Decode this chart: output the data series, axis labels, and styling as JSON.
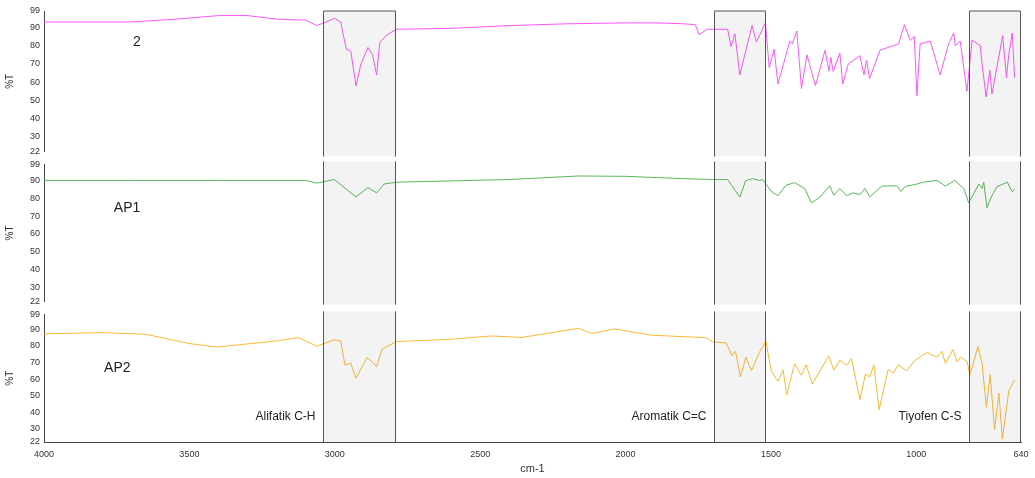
{
  "chart_data": [
    {
      "type": "line",
      "ylabel": "%T",
      "xlim": [
        4000,
        640
      ],
      "xticks": [
        4000,
        3500,
        3000,
        2500,
        2000,
        1500,
        1000,
        640
      ],
      "ylim": [
        22,
        99
      ],
      "yticks": [
        22,
        30,
        40,
        50,
        60,
        70,
        80,
        90,
        99
      ],
      "tick_labels": "y",
      "grid": false,
      "legend": false,
      "marker": "none",
      "bands": [
        {
          "axis": "x",
          "from": 3041,
          "to": 2788
        },
        {
          "axis": "x",
          "from": 1695,
          "to": 1516
        },
        {
          "axis": "x",
          "from": 818,
          "to": 640
        }
      ],
      "x": [
        4000,
        3700,
        3550,
        3400,
        3300,
        3200,
        3100,
        3062,
        3030,
        3001,
        2980,
        2960,
        2945,
        2927,
        2910,
        2886,
        2870,
        2856,
        2845,
        2820,
        2788,
        2600,
        2400,
        2200,
        2000,
        1900,
        1800,
        1760,
        1747,
        1720,
        1700,
        1649,
        1637,
        1624,
        1607,
        1565,
        1550,
        1519,
        1506,
        1489,
        1476,
        1435,
        1427,
        1411,
        1395,
        1376,
        1347,
        1314,
        1300,
        1294,
        1286,
        1263,
        1253,
        1234,
        1194,
        1180,
        1171,
        1161,
        1125,
        1061,
        1041,
        1021,
        1007,
        998,
        987,
        952,
        918,
        889,
        871,
        866,
        849,
        826,
        808,
        780,
        774,
        760,
        747,
        740,
        703,
        690,
        682,
        670,
        662
      ],
      "series": [
        {
          "name": "2",
          "color": "#ff55ff",
          "values": [
            93,
            93,
            94.5,
            96.5,
            96.5,
            94.5,
            94,
            91,
            93,
            95,
            93,
            78,
            77,
            58,
            70,
            79,
            75,
            64,
            82,
            86,
            89,
            89.5,
            91,
            92,
            92.5,
            92.5,
            92,
            91.5,
            86,
            89,
            89,
            89,
            79.5,
            86.5,
            64,
            91,
            82,
            92.5,
            68,
            78,
            59,
            82.5,
            81,
            88,
            56.5,
            75,
            58,
            77.5,
            66,
            73.5,
            66,
            76,
            59,
            70,
            74.5,
            64,
            72,
            62,
            77.5,
            81,
            91.5,
            83,
            85,
            52.5,
            81,
            82.5,
            64,
            81,
            87,
            80,
            82.5,
            55,
            83,
            80,
            70,
            52,
            66.5,
            53.5,
            85.5,
            62.5,
            75,
            87,
            62.5
          ]
        }
      ]
    },
    {
      "type": "line",
      "ylabel": "%T",
      "xlim": [
        4000,
        640
      ],
      "xticks": [
        4000,
        3500,
        3000,
        2500,
        2000,
        1500,
        1000,
        640
      ],
      "ylim": [
        22,
        99
      ],
      "yticks": [
        22,
        30,
        40,
        50,
        60,
        70,
        80,
        90,
        99
      ],
      "tick_labels": "y",
      "grid": false,
      "legend": false,
      "marker": "none",
      "bands": [
        {
          "axis": "x",
          "from": 3041,
          "to": 2788
        },
        {
          "axis": "x",
          "from": 1695,
          "to": 1516
        },
        {
          "axis": "x",
          "from": 818,
          "to": 640
        }
      ],
      "x": [
        4000,
        3700,
        3400,
        3100,
        3062,
        3001,
        2960,
        2927,
        2886,
        2856,
        2830,
        2788,
        2400,
        2161,
        2000,
        1800,
        1700,
        1649,
        1637,
        1607,
        1587,
        1563,
        1540,
        1528,
        1499,
        1476,
        1449,
        1419,
        1384,
        1361,
        1332,
        1298,
        1284,
        1263,
        1240,
        1217,
        1194,
        1177,
        1160,
        1119,
        1067,
        1053,
        1038,
        998,
        976,
        929,
        900,
        868,
        837,
        820,
        785,
        774,
        768,
        757,
        743,
        723,
        687,
        670,
        662
      ],
      "series": [
        {
          "name": "AP1",
          "color": "#5cb85c",
          "values": [
            90,
            90,
            90,
            90,
            88.5,
            90.5,
            85,
            80.8,
            86,
            83,
            88,
            89,
            90.5,
            92.5,
            92.3,
            91,
            90.5,
            90.5,
            87.7,
            80.6,
            89.8,
            91,
            90,
            90.5,
            83.8,
            81.5,
            87.2,
            88.8,
            85.5,
            77.4,
            80.5,
            87,
            81.7,
            85.5,
            81.5,
            83,
            82,
            85.5,
            80.8,
            86.8,
            87,
            83.8,
            86.6,
            88,
            89,
            90,
            86.8,
            90,
            85.5,
            77.4,
            88,
            85.5,
            89,
            74.7,
            80.5,
            86.5,
            89,
            83.6,
            85
          ]
        }
      ]
    },
    {
      "type": "line",
      "ylabel": "%T",
      "xlabel": "cm-1",
      "xlim": [
        4000,
        640
      ],
      "xticks": [
        4000,
        3500,
        3000,
        2500,
        2000,
        1500,
        1000,
        640
      ],
      "ylim": [
        22,
        99
      ],
      "yticks": [
        22,
        30,
        40,
        50,
        60,
        70,
        80,
        90,
        99
      ],
      "grid": false,
      "legend": false,
      "marker": "none",
      "bands": [
        {
          "axis": "x",
          "from": 3041,
          "to": 2788,
          "label": "Alifatik C-H"
        },
        {
          "axis": "x",
          "from": 1695,
          "to": 1516,
          "label": "Aromatik C=C"
        },
        {
          "axis": "x",
          "from": 818,
          "to": 640,
          "label": "Tiyofen C-S"
        }
      ],
      "x": [
        4000,
        3800,
        3650,
        3500,
        3406,
        3200,
        3125,
        3062,
        3001,
        2980,
        2965,
        2945,
        2927,
        2889,
        2870,
        2856,
        2838,
        2788,
        2600,
        2461,
        2357,
        2162,
        2117,
        2036,
        1908,
        1724,
        1700,
        1654,
        1634,
        1622,
        1605,
        1586,
        1567,
        1540,
        1517,
        1499,
        1476,
        1458,
        1446,
        1419,
        1396,
        1379,
        1358,
        1301,
        1284,
        1263,
        1240,
        1223,
        1194,
        1175,
        1160,
        1146,
        1128,
        1097,
        1080,
        1062,
        1034,
        1004,
        963,
        929,
        912,
        900,
        874,
        860,
        848,
        825,
        816,
        788,
        774,
        759,
        746,
        731,
        716,
        704,
        682,
        662
      ],
      "series": [
        {
          "name": "AP2",
          "color": "#ffb733",
          "values": [
            87.3,
            88,
            87,
            81.4,
            79.3,
            83,
            85,
            79.8,
            83.7,
            83,
            68.5,
            69.5,
            60.5,
            73,
            70,
            67.6,
            78,
            82.6,
            84,
            86,
            85.1,
            90.6,
            87.5,
            90.2,
            86.4,
            85,
            82.4,
            81.8,
            74.1,
            76.8,
            61.3,
            73.2,
            65,
            76,
            82.7,
            65,
            58.5,
            65.5,
            50.3,
            69.2,
            62.3,
            68.6,
            57,
            74,
            65.3,
            71.4,
            68.2,
            72.3,
            47.5,
            63,
            61.3,
            68.6,
            41.5,
            65.8,
            63.5,
            68.6,
            65,
            71.4,
            76,
            73.2,
            76.8,
            69.5,
            77.8,
            70.4,
            73.2,
            70.4,
            62.3,
            79.6,
            69.5,
            42.9,
            62.6,
            29.6,
            51.5,
            23.7,
            53,
            59.4
          ]
        }
      ]
    }
  ]
}
